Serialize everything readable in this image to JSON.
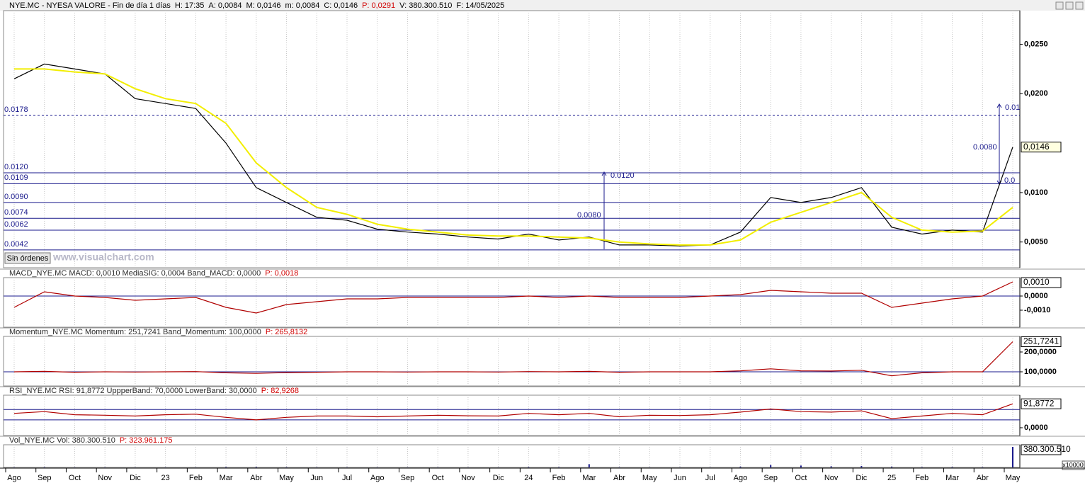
{
  "header": [
    {
      "text": "NYE.MC - NYESA VALORE - Fin de día 1 días",
      "color": "#000000"
    },
    {
      "text": "H: 17:35",
      "color": "#000000"
    },
    {
      "text": "A: 0,0084",
      "color": "#000000"
    },
    {
      "text": "M: 0,0146",
      "color": "#000000"
    },
    {
      "text": "m: 0,0084",
      "color": "#000000"
    },
    {
      "text": "C: 0,0146",
      "color": "#000000"
    },
    {
      "text": "P: 0,0291",
      "color": "#d00000"
    },
    {
      "text": "V: 380.300.510",
      "color": "#000000"
    },
    {
      "text": "F: 14/05/2025",
      "color": "#000000"
    }
  ],
  "button": "Sin órdenes",
  "watermark": "www.visualchart.com",
  "volume_unit": "x10000",
  "chart_data": [
    {
      "type": "line",
      "categories": [
        "Ago",
        "Sep",
        "Oct",
        "Nov",
        "Dic",
        "23",
        "Feb",
        "Mar",
        "Abr",
        "May",
        "Jun",
        "Jul",
        "Ago",
        "Sep",
        "Oct",
        "Nov",
        "Dic",
        "24",
        "Feb",
        "Mar",
        "Abr",
        "May",
        "Jun",
        "Jul",
        "Ago",
        "Sep",
        "Oct",
        "Nov",
        "Dic",
        "25",
        "Feb",
        "Mar",
        "Abr",
        "May"
      ],
      "series": [
        {
          "color": "#000000",
          "values": [
            0.0215,
            0.023,
            0.0225,
            0.022,
            0.0195,
            0.019,
            0.0185,
            0.015,
            0.0105,
            0.009,
            0.0075,
            0.0072,
            0.0063,
            0.006,
            0.0058,
            0.0055,
            0.0053,
            0.0058,
            0.0052,
            0.0055,
            0.0047,
            0.0047,
            0.0046,
            0.0047,
            0.006,
            0.0095,
            0.009,
            0.0095,
            0.0105,
            0.0065,
            0.0058,
            0.0062,
            0.006,
            0.0146
          ]
        },
        {
          "color": "#f2ee00",
          "values": [
            0.0225,
            0.0225,
            0.0222,
            0.022,
            0.0205,
            0.0195,
            0.019,
            0.017,
            0.013,
            0.0105,
            0.0085,
            0.0078,
            0.0068,
            0.0063,
            0.006,
            0.0057,
            0.0056,
            0.0056,
            0.0055,
            0.0054,
            0.005,
            0.0048,
            0.0047,
            0.0047,
            0.0052,
            0.007,
            0.008,
            0.009,
            0.01,
            0.0075,
            0.0062,
            0.006,
            0.0061,
            0.0085
          ]
        }
      ],
      "ylim": [
        0.0024,
        0.0284
      ],
      "yticks": [
        {
          "value": 0.005,
          "label": "0,0050"
        },
        {
          "value": 0.01,
          "label": "0,0100"
        },
        {
          "value": 0.02,
          "label": "0,0200"
        },
        {
          "value": 0.025,
          "label": "0,0250"
        }
      ],
      "levels": [
        {
          "value": 0.0178,
          "label": "0.0178"
        },
        {
          "value": 0.012,
          "label": "0.0120"
        },
        {
          "value": 0.0109,
          "label": "0.0109"
        },
        {
          "value": 0.009,
          "label": "0.0090"
        },
        {
          "value": 0.0074,
          "label": "0.0074"
        },
        {
          "value": 0.0062,
          "label": "0.0062"
        },
        {
          "value": 0.0042,
          "label": "0.0042"
        }
      ],
      "annotations": [
        "0.0080",
        "0.0120",
        "0.0080",
        "0.01",
        "0.0"
      ],
      "last_label": "0,0146"
    },
    {
      "type": "line",
      "title": "MACD_NYE.MC  MACD: 0,0010  MediaSIG: 0,0004  Band_MACD: 0,0000",
      "p_label": "P: 0,0018",
      "color": "#b00000",
      "values": [
        -0.0008,
        0.0003,
        0,
        -0.0001,
        -0.0003,
        -0.0002,
        -0.0001,
        -0.0008,
        -0.0012,
        -0.0006,
        -0.0004,
        -0.0002,
        -0.0002,
        -0.0001,
        -0.0001,
        -0.0001,
        -0.0001,
        0,
        -0.0001,
        0,
        -0.0001,
        -0.0001,
        -0.0001,
        0,
        0.0001,
        0.0004,
        0.0003,
        0.0002,
        0.0002,
        -0.0008,
        -0.0005,
        -0.0002,
        0,
        0.001
      ],
      "ylim": [
        -0.0022,
        0.0013
      ],
      "yticks": [
        {
          "value": 0,
          "label": "0,0000"
        },
        {
          "value": -0.001,
          "label": "-0,0010"
        }
      ],
      "bands": [
        0
      ],
      "last_label": "0,0010"
    },
    {
      "type": "line",
      "title": "Momentum_NYE.MC  Momentum: 251,7241  Band_Momentum: 100,0000",
      "p_label": "P: 265,8132",
      "color": "#b00000",
      "values": [
        100,
        102,
        98,
        100,
        99,
        100,
        101,
        95,
        92,
        96,
        98,
        100,
        100,
        99,
        100,
        100,
        99,
        101,
        100,
        102,
        98,
        100,
        100,
        100,
        105,
        115,
        105,
        104,
        108,
        80,
        95,
        100,
        100,
        251.7241
      ],
      "ylim": [
        28.6,
        278.6
      ],
      "yticks": [
        {
          "value": 200,
          "label": "200,0000"
        },
        {
          "value": 100,
          "label": "100,0000"
        }
      ],
      "bands": [
        100
      ],
      "last_label": "251,7241"
    },
    {
      "type": "line",
      "title": "RSI_NYE.MC  RSI: 91,8772  UppperBand: 70,0000  LowerBand: 30,0000",
      "p_label": "P: 82,9268",
      "color": "#b00000",
      "values": [
        55,
        62,
        50,
        48,
        45,
        50,
        52,
        40,
        30,
        40,
        45,
        45,
        42,
        45,
        48,
        46,
        45,
        55,
        50,
        55,
        42,
        48,
        47,
        50,
        60,
        72,
        62,
        60,
        65,
        35,
        45,
        55,
        50,
        91.8772
      ],
      "ylim": [
        -30,
        125
      ],
      "yticks": [
        {
          "value": 0,
          "label": "0,0000"
        }
      ],
      "bands": [
        70,
        30
      ],
      "last_label": "91,8772"
    },
    {
      "type": "bar",
      "title": "Vol_NYE.MC  Vol: 380.300.510",
      "p_label": "P: 323.961.175",
      "color": "#1a1a8c",
      "values": [
        5000000,
        8000000,
        4000000,
        5000000,
        3000000,
        4000000,
        3000000,
        10000000,
        12000000,
        8000000,
        6000000,
        5000000,
        5000000,
        4000000,
        4000000,
        3000000,
        3000000,
        10000000,
        8000000,
        60000000,
        6000000,
        4000000,
        3000000,
        3000000,
        15000000,
        45000000,
        35000000,
        20000000,
        25000000,
        15000000,
        8000000,
        10000000,
        8000000,
        380300510
      ],
      "ylim": [
        0,
        420000000
      ],
      "last_label": "380.300.510"
    }
  ]
}
